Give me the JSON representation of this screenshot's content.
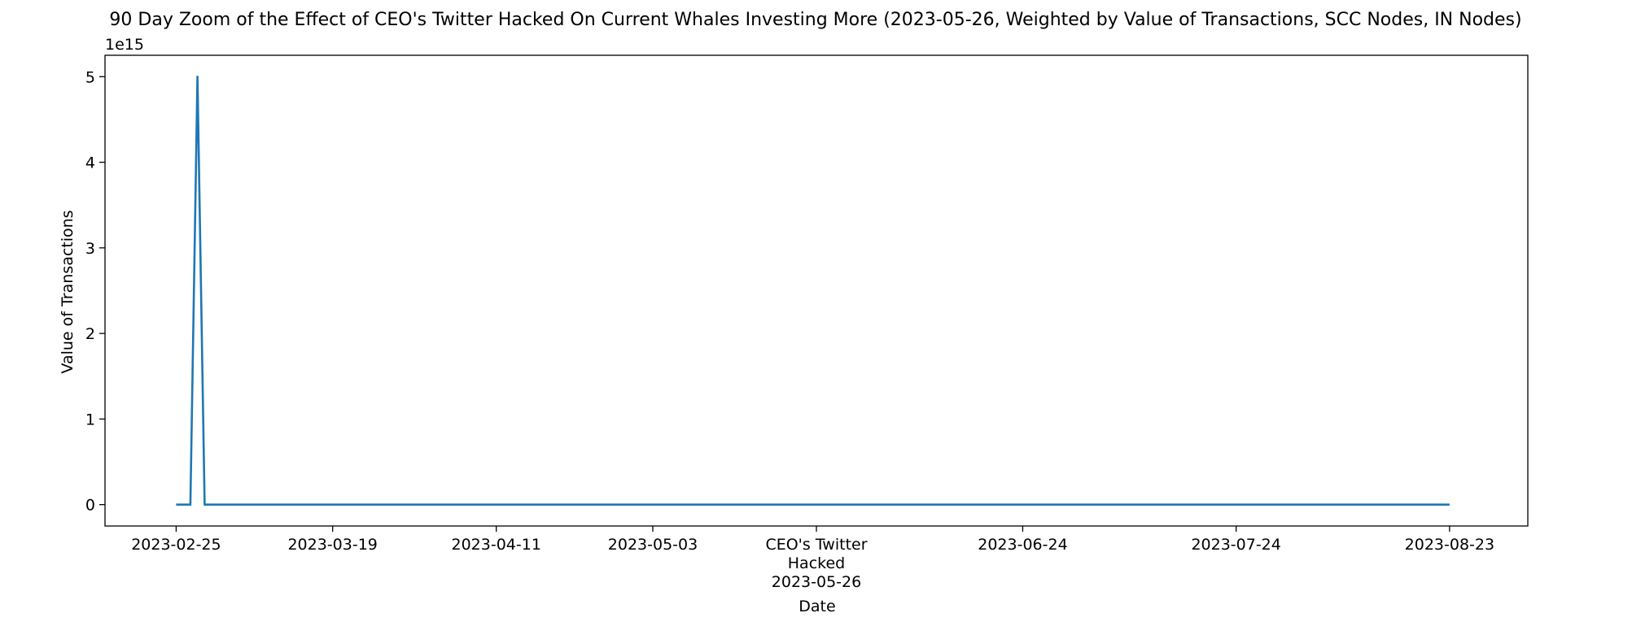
{
  "chart_data": {
    "type": "line",
    "title": "90 Day Zoom of the Effect of CEO's Twitter Hacked On Current Whales Investing More (2023-05-26, Weighted by Value of Transactions, SCC Nodes, IN Nodes)",
    "xlabel": "Date",
    "ylabel": "Value of Transactions",
    "y_offset_label": "1e15",
    "xlim": [
      "2023-02-15",
      "2023-09-03"
    ],
    "ylim": [
      -250000000000000.0,
      5250000000000000.0
    ],
    "y_ticks": [
      {
        "value": 0,
        "label": "0"
      },
      {
        "value": 1000000000000000.0,
        "label": "1"
      },
      {
        "value": 2000000000000000.0,
        "label": "2"
      },
      {
        "value": 3000000000000000.0,
        "label": "3"
      },
      {
        "value": 4000000000000000.0,
        "label": "4"
      },
      {
        "value": 5000000000000000.0,
        "label": "5"
      }
    ],
    "x_ticks": [
      {
        "date": "2023-02-25",
        "lines": [
          "2023-02-25"
        ]
      },
      {
        "date": "2023-03-19",
        "lines": [
          "2023-03-19"
        ]
      },
      {
        "date": "2023-04-11",
        "lines": [
          "2023-04-11"
        ]
      },
      {
        "date": "2023-05-03",
        "lines": [
          "2023-05-03"
        ]
      },
      {
        "date": "2023-05-26",
        "lines": [
          "CEO's Twitter",
          "Hacked",
          "2023-05-26"
        ]
      },
      {
        "date": "2023-06-24",
        "lines": [
          "2023-06-24"
        ]
      },
      {
        "date": "2023-07-24",
        "lines": [
          "2023-07-24"
        ]
      },
      {
        "date": "2023-08-23",
        "lines": [
          "2023-08-23"
        ]
      }
    ],
    "grid": false,
    "series": [
      {
        "color": "#1f77b4",
        "points": [
          {
            "x": "2023-02-25",
            "y": 0
          },
          {
            "x": "2023-02-27",
            "y": 0
          },
          {
            "x": "2023-02-28",
            "y": 5000000000000000.0
          },
          {
            "x": "2023-03-01",
            "y": 0
          },
          {
            "x": "2023-08-23",
            "y": 0
          }
        ]
      }
    ]
  }
}
